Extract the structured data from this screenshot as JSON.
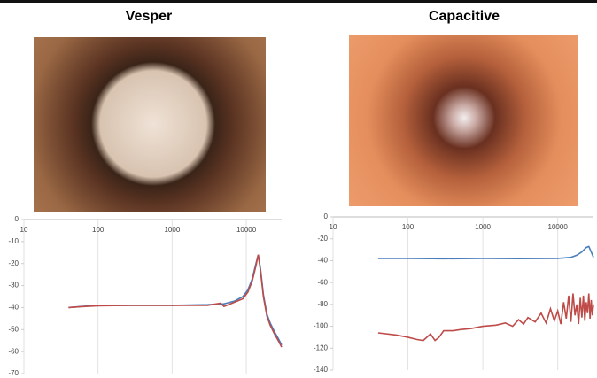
{
  "chart_data": [
    {
      "type": "line",
      "title": "Vesper",
      "log_x": true,
      "grid": "x",
      "xlim": [
        10,
        30000
      ],
      "ylim": [
        -70,
        0
      ],
      "xticks": [
        10,
        100,
        1000,
        10000
      ],
      "yticks": [
        0,
        -10,
        -20,
        -30,
        -40,
        -50,
        -60,
        -70
      ],
      "series": [
        {
          "color": "#4a7ebb",
          "x": [
            40,
            60,
            100,
            300,
            1000,
            3000,
            5000,
            7000,
            9000,
            10500,
            12000,
            13500,
            14500,
            15500,
            17000,
            19000,
            21000,
            24000,
            27000,
            30000
          ],
          "values": [
            -40,
            -39.5,
            -39,
            -39,
            -39,
            -38.7,
            -38.3,
            -37,
            -35,
            -32,
            -27,
            -20,
            -16,
            -22,
            -34,
            -43,
            -47,
            -51,
            -54,
            -57
          ]
        },
        {
          "color": "#be4b48",
          "x": [
            40,
            60,
            100,
            300,
            1000,
            3000,
            4500,
            5000,
            7000,
            9000,
            10500,
            12000,
            13500,
            14500,
            15500,
            17000,
            19000,
            21000,
            24000,
            27000,
            30000
          ],
          "values": [
            -40,
            -39.6,
            -39.2,
            -39,
            -39,
            -39,
            -38,
            -39.5,
            -37.5,
            -36,
            -33,
            -28,
            -21,
            -16,
            -23,
            -35,
            -44,
            -48,
            -52,
            -55,
            -58
          ]
        }
      ]
    },
    {
      "type": "line",
      "title": "Capacitive",
      "log_x": true,
      "grid": "x",
      "xlim": [
        10,
        30000
      ],
      "ylim": [
        -140,
        0
      ],
      "xticks": [
        10,
        100,
        1000,
        10000
      ],
      "yticks": [
        0,
        -20,
        -40,
        -60,
        -80,
        -100,
        -120,
        -140
      ],
      "series": [
        {
          "color": "#4a7ebb",
          "x": [
            40,
            100,
            300,
            1000,
            3000,
            10000,
            15000,
            18000,
            21000,
            24000,
            26000,
            28000,
            30000
          ],
          "values": [
            -38,
            -38,
            -38.3,
            -38,
            -38.2,
            -38,
            -37,
            -35,
            -32,
            -28,
            -27,
            -32,
            -37
          ]
        },
        {
          "color": "#be4b48",
          "x": [
            40,
            70,
            100,
            130,
            160,
            200,
            230,
            260,
            300,
            400,
            500,
            700,
            1000,
            1500,
            2000,
            2500,
            3000,
            3500,
            4000,
            5000,
            6000,
            7000,
            8000,
            9000,
            10000,
            11000,
            12000,
            13000,
            14000,
            15000,
            16000,
            17000,
            18000,
            19000,
            20000,
            21000,
            22000,
            23000,
            24000,
            25000,
            26000,
            27000,
            28000,
            29000,
            30000
          ],
          "values": [
            -106,
            -108,
            -110,
            -112,
            -113,
            -107,
            -113,
            -110,
            -104,
            -104,
            -103,
            -102,
            -100,
            -99,
            -97,
            -100,
            -94,
            -98,
            -92,
            -96,
            -88,
            -97,
            -84,
            -95,
            -86,
            -98,
            -78,
            -93,
            -72,
            -96,
            -70,
            -90,
            -80,
            -98,
            -74,
            -92,
            -72,
            -95,
            -78,
            -88,
            -70,
            -93,
            -76,
            -90,
            -80
          ]
        }
      ]
    }
  ]
}
